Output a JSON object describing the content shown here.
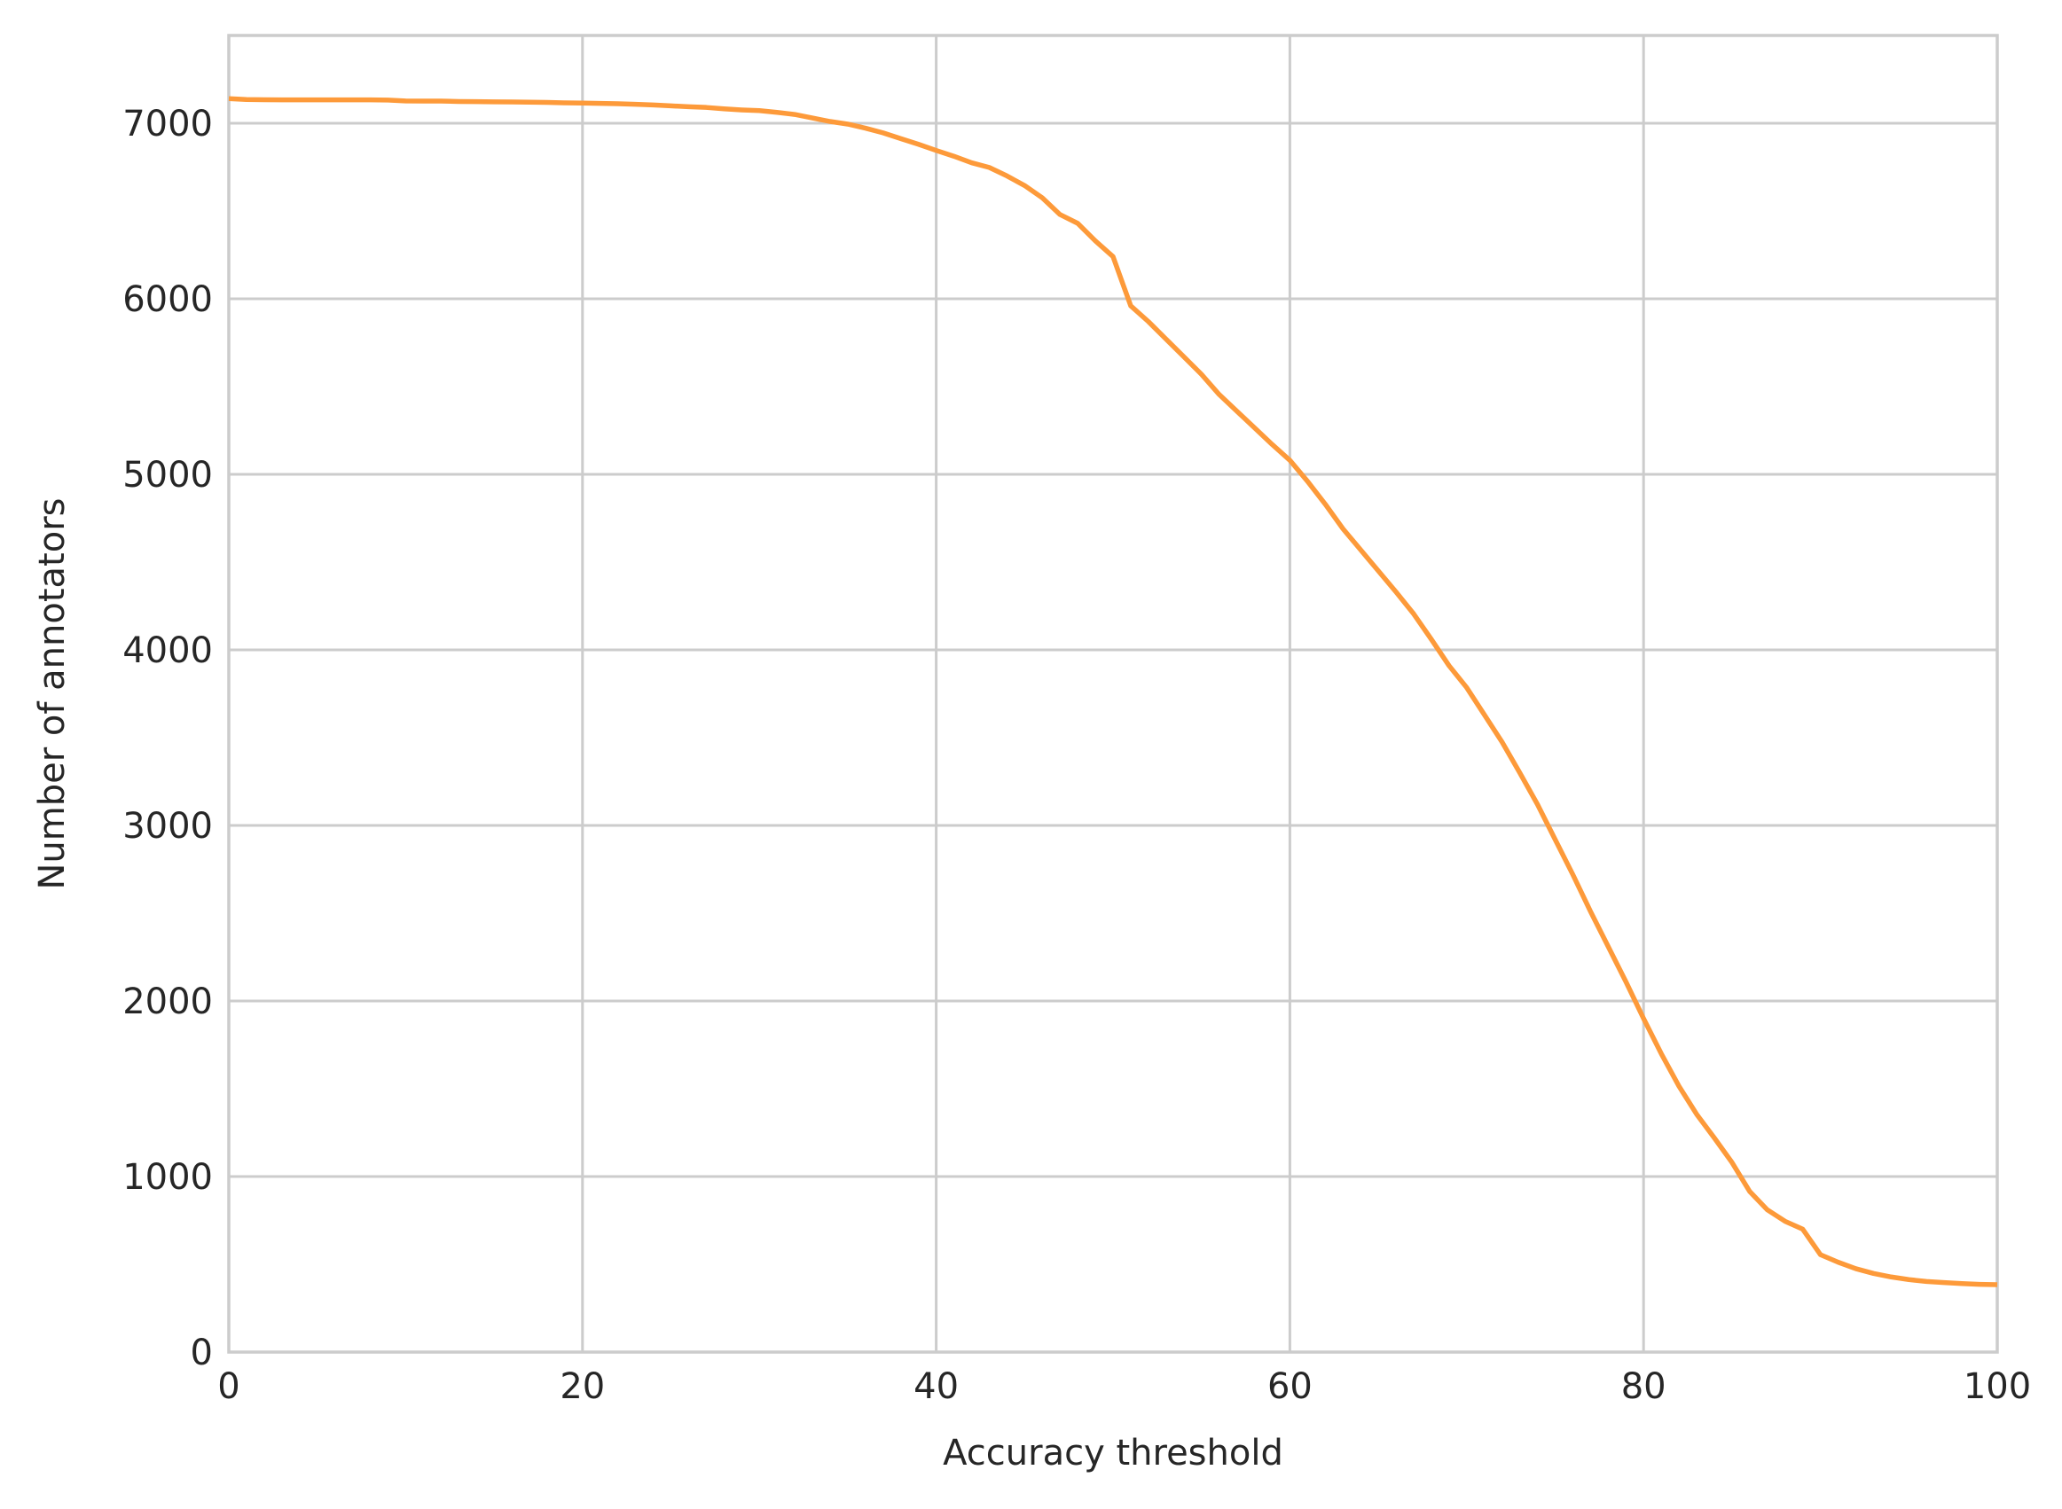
{
  "chart_data": {
    "type": "line",
    "title": "",
    "xlabel": "Accuracy threshold",
    "ylabel": "Number of annotators",
    "xlim": [
      0,
      100
    ],
    "ylim": [
      0,
      7500
    ],
    "grid": true,
    "xticks": [
      0,
      20,
      40,
      60,
      80,
      100
    ],
    "yticks": [
      0,
      1000,
      2000,
      3000,
      4000,
      5000,
      6000,
      7000
    ],
    "xtick_labels": [
      "0",
      "20",
      "40",
      "60",
      "80",
      "100"
    ],
    "ytick_labels": [
      "0",
      "1000",
      "2000",
      "3000",
      "4000",
      "5000",
      "6000",
      "7000"
    ],
    "series": [
      {
        "name": "annotators",
        "color": "#fd9a3a",
        "x": [
          0,
          1,
          2,
          3,
          4,
          5,
          6,
          7,
          8,
          9,
          10,
          11,
          12,
          13,
          14,
          15,
          16,
          17,
          18,
          19,
          20,
          21,
          22,
          23,
          24,
          25,
          26,
          27,
          28,
          29,
          30,
          31,
          32,
          33,
          34,
          35,
          36,
          37,
          38,
          39,
          40,
          41,
          42,
          43,
          44,
          45,
          46,
          47,
          48,
          49,
          50,
          51,
          52,
          53,
          54,
          55,
          56,
          57,
          58,
          59,
          60,
          61,
          62,
          63,
          64,
          65,
          66,
          67,
          68,
          69,
          70,
          71,
          72,
          73,
          74,
          75,
          76,
          77,
          78,
          79,
          80,
          81,
          82,
          83,
          84,
          85,
          86,
          87,
          88,
          89,
          90,
          91,
          92,
          93,
          94,
          95,
          96,
          97,
          98,
          99,
          100
        ],
        "y": [
          7140,
          7135,
          7134,
          7133,
          7133,
          7133,
          7133,
          7133,
          7133,
          7132,
          7127,
          7126,
          7126,
          7124,
          7123,
          7122,
          7121,
          7120,
          7119,
          7116,
          7115,
          7113,
          7111,
          7108,
          7104,
          7099,
          7094,
          7090,
          7082,
          7076,
          7072,
          7062,
          7050,
          7030,
          7010,
          6995,
          6972,
          6945,
          6912,
          6880,
          6845,
          6812,
          6775,
          6748,
          6700,
          6645,
          6575,
          6480,
          6430,
          6330,
          6240,
          5960,
          5870,
          5770,
          5670,
          5570,
          5455,
          5360,
          5265,
          5170,
          5080,
          4960,
          4830,
          4690,
          4570,
          4450,
          4330,
          4205,
          4060,
          3910,
          3785,
          3630,
          3475,
          3300,
          3120,
          2920,
          2720,
          2510,
          2310,
          2110,
          1900,
          1700,
          1515,
          1355,
          1220,
          1080,
          915,
          810,
          745,
          700,
          555,
          512,
          475,
          448,
          428,
          413,
          402,
          396,
          390,
          386,
          384
        ]
      }
    ]
  }
}
